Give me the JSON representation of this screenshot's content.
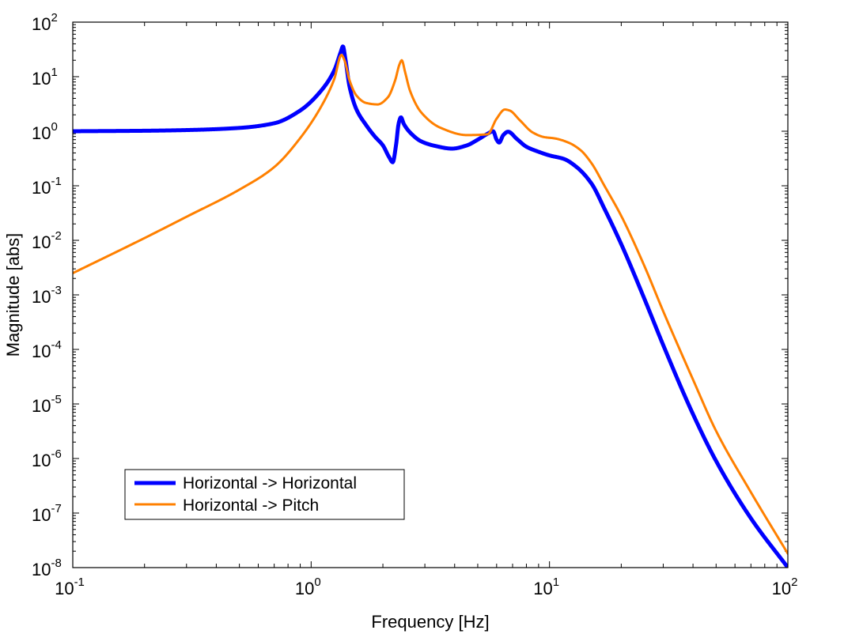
{
  "chart_data": {
    "type": "line",
    "xscale": "log",
    "yscale": "log",
    "xlim": [
      0.1,
      100
    ],
    "ylim": [
      1e-08,
      100
    ],
    "xlabel": "Frequency [Hz]",
    "ylabel": "Magnitude [abs]",
    "x_ticks": [
      {
        "value": 0.1,
        "base": "10",
        "exp": "-1"
      },
      {
        "value": 1,
        "base": "10",
        "exp": "0"
      },
      {
        "value": 10,
        "base": "10",
        "exp": "1"
      },
      {
        "value": 100,
        "base": "10",
        "exp": "2"
      }
    ],
    "y_ticks": [
      {
        "value": 1e-08,
        "base": "10",
        "exp": "-8"
      },
      {
        "value": 1e-07,
        "base": "10",
        "exp": "-7"
      },
      {
        "value": 1e-06,
        "base": "10",
        "exp": "-6"
      },
      {
        "value": 1e-05,
        "base": "10",
        "exp": "-5"
      },
      {
        "value": 0.0001,
        "base": "10",
        "exp": "-4"
      },
      {
        "value": 0.001,
        "base": "10",
        "exp": "-3"
      },
      {
        "value": 0.01,
        "base": "10",
        "exp": "-2"
      },
      {
        "value": 0.1,
        "base": "10",
        "exp": "-1"
      },
      {
        "value": 1,
        "base": "10",
        "exp": "0"
      },
      {
        "value": 10,
        "base": "10",
        "exp": "1"
      },
      {
        "value": 100,
        "base": "10",
        "exp": "2"
      }
    ],
    "legend_position": "bottom-left",
    "series": [
      {
        "name": "Horizontal -> Horizontal",
        "color": "#0000ff",
        "width": "thick",
        "points": [
          [
            0.1,
            1.0
          ],
          [
            0.2,
            1.02
          ],
          [
            0.3,
            1.05
          ],
          [
            0.5,
            1.15
          ],
          [
            0.7,
            1.4
          ],
          [
            0.9,
            2.4
          ],
          [
            1.1,
            5.5
          ],
          [
            1.25,
            13
          ],
          [
            1.33,
            28
          ],
          [
            1.36,
            36
          ],
          [
            1.39,
            22
          ],
          [
            1.45,
            6.5
          ],
          [
            1.55,
            2.5
          ],
          [
            1.7,
            1.3
          ],
          [
            1.85,
            0.8
          ],
          [
            2.0,
            0.55
          ],
          [
            2.12,
            0.34
          ],
          [
            2.2,
            0.27
          ],
          [
            2.27,
            0.55
          ],
          [
            2.33,
            1.4
          ],
          [
            2.38,
            1.8
          ],
          [
            2.45,
            1.35
          ],
          [
            2.6,
            0.95
          ],
          [
            2.9,
            0.65
          ],
          [
            3.3,
            0.54
          ],
          [
            3.9,
            0.48
          ],
          [
            4.5,
            0.55
          ],
          [
            5.0,
            0.7
          ],
          [
            5.5,
            0.9
          ],
          [
            5.8,
            1.0
          ],
          [
            6.0,
            0.7
          ],
          [
            6.15,
            0.62
          ],
          [
            6.4,
            0.85
          ],
          [
            6.7,
            0.98
          ],
          [
            7.3,
            0.72
          ],
          [
            8.0,
            0.52
          ],
          [
            9.0,
            0.42
          ],
          [
            10.0,
            0.36
          ],
          [
            11.5,
            0.31
          ],
          [
            13.0,
            0.22
          ],
          [
            15.0,
            0.11
          ],
          [
            17.0,
            0.038
          ],
          [
            20.0,
            0.0085
          ],
          [
            25.0,
            0.00085
          ],
          [
            30.0,
            0.00012
          ],
          [
            40.0,
            6.5e-06
          ],
          [
            50.0,
            9e-07
          ],
          [
            70.0,
            8e-08
          ],
          [
            100.0,
            1e-08
          ]
        ]
      },
      {
        "name": "Horizontal -> Pitch",
        "color": "#ff8000",
        "width": "normal",
        "points": [
          [
            0.1,
            0.0025
          ],
          [
            0.2,
            0.011
          ],
          [
            0.3,
            0.027
          ],
          [
            0.5,
            0.085
          ],
          [
            0.7,
            0.22
          ],
          [
            0.9,
            0.75
          ],
          [
            1.1,
            2.8
          ],
          [
            1.25,
            9
          ],
          [
            1.34,
            25
          ],
          [
            1.38,
            20
          ],
          [
            1.45,
            8.5
          ],
          [
            1.55,
            4.5
          ],
          [
            1.7,
            3.3
          ],
          [
            1.9,
            3.1
          ],
          [
            2.1,
            4.2
          ],
          [
            2.25,
            8.5
          ],
          [
            2.35,
            17
          ],
          [
            2.4,
            20
          ],
          [
            2.48,
            12
          ],
          [
            2.6,
            5.5
          ],
          [
            2.9,
            2.2
          ],
          [
            3.5,
            1.15
          ],
          [
            4.5,
            0.85
          ],
          [
            5.5,
            0.88
          ],
          [
            6.0,
            1.7
          ],
          [
            6.5,
            2.5
          ],
          [
            6.8,
            2.4
          ],
          [
            7.5,
            1.6
          ],
          [
            8.5,
            0.95
          ],
          [
            9.5,
            0.78
          ],
          [
            10.5,
            0.74
          ],
          [
            12.0,
            0.62
          ],
          [
            13.5,
            0.45
          ],
          [
            15.0,
            0.26
          ],
          [
            17.0,
            0.1
          ],
          [
            20.0,
            0.028
          ],
          [
            25.0,
            0.0034
          ],
          [
            30.0,
            0.0005
          ],
          [
            40.0,
            2.8e-05
          ],
          [
            50.0,
            3.2e-06
          ],
          [
            70.0,
            2.4e-07
          ],
          [
            100.0,
            1.8e-08
          ]
        ]
      }
    ]
  }
}
